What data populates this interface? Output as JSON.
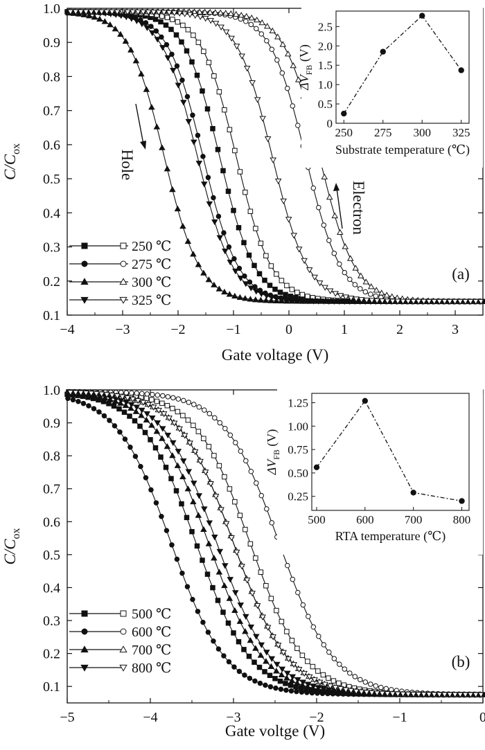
{
  "figure": {
    "panels": [
      "(a)",
      "(b)"
    ]
  },
  "chart_data": [
    {
      "type": "line",
      "panel_label": "(a)",
      "xlabel": "Gate voltage (V)",
      "ylabel_main": "C/C",
      "ylabel_sub": "ox",
      "xlim": [
        -4,
        3.5
      ],
      "ylim": [
        0.1,
        1.0
      ],
      "xticks": [
        -4,
        -3,
        -2,
        -1,
        0,
        1,
        2,
        3
      ],
      "yticks": [
        0.1,
        0.2,
        0.3,
        0.4,
        0.5,
        0.6,
        0.7,
        0.8,
        0.9,
        1.0
      ],
      "annotations": [
        {
          "text": "Hole",
          "direction": "down",
          "position": "left"
        },
        {
          "text": "Electron",
          "direction": "up",
          "position": "right"
        }
      ],
      "legend_position": "bottom-left",
      "series": [
        {
          "name": "250 ℃",
          "marker": "square",
          "sweep_down_v": -1.25,
          "sweep_up_v": -0.95
        },
        {
          "name": "275 ℃",
          "marker": "circle",
          "sweep_down_v": -1.55,
          "sweep_up_v": 0.3
        },
        {
          "name": "300 ℃",
          "marker": "triangle-up",
          "sweep_down_v": -2.25,
          "sweep_up_v": 0.55
        },
        {
          "name": "325 ℃",
          "marker": "triangle-down",
          "sweep_down_v": -1.65,
          "sweep_up_v": -0.3
        }
      ],
      "params": {
        "c_min": 0.14,
        "c_max": 0.99,
        "slope": 0.32
      },
      "inset": {
        "type": "line",
        "xlabel": "Substrate temperature (℃)",
        "ylabel_pre": "ΔV",
        "ylabel_sub": "FB",
        "ylabel_post": " (V)",
        "x": [
          250,
          275,
          300,
          325
        ],
        "y": [
          0.25,
          1.85,
          2.78,
          1.37
        ],
        "xlim": [
          245,
          330
        ],
        "ylim": [
          0,
          2.9
        ],
        "xticks": [
          250,
          275,
          300,
          325
        ],
        "yticks": [
          0,
          0.5,
          1.0,
          1.5,
          2.0,
          2.5
        ],
        "ytick_labels": [
          "0",
          "0.5",
          "1.0",
          "1.5",
          "2.0",
          "2.5"
        ]
      }
    },
    {
      "type": "line",
      "panel_label": "(b)",
      "xlabel": "Gate voltge (V)",
      "ylabel_main": "C/C",
      "ylabel_sub": "ox",
      "xlim": [
        -5,
        0
      ],
      "ylim": [
        0.05,
        1.0
      ],
      "xticks": [
        -5,
        -4,
        -3,
        -2,
        -1,
        0
      ],
      "yticks": [
        0.1,
        0.2,
        0.3,
        0.4,
        0.5,
        0.6,
        0.7,
        0.8,
        0.9,
        1.0
      ],
      "legend_position": "bottom-left",
      "series": [
        {
          "name": "500 ℃",
          "marker": "square",
          "sweep_down_v": -3.45,
          "sweep_up_v": -2.8
        },
        {
          "name": "600 ℃",
          "marker": "circle",
          "sweep_down_v": -3.75,
          "sweep_up_v": -2.45
        },
        {
          "name": "700 ℃",
          "marker": "triangle-up",
          "sweep_down_v": -3.3,
          "sweep_up_v": -3.0
        },
        {
          "name": "800 ℃",
          "marker": "triangle-down",
          "sweep_down_v": -3.2,
          "sweep_up_v": -3.0
        }
      ],
      "params": {
        "c_min": 0.075,
        "c_max": 0.995,
        "slope": 0.33
      },
      "inset": {
        "type": "line",
        "xlabel": "RTA temperature (℃)",
        "ylabel_pre": "ΔV",
        "ylabel_sub": "FB",
        "ylabel_post": " (V)",
        "x": [
          500,
          600,
          700,
          800
        ],
        "y": [
          0.56,
          1.27,
          0.29,
          0.2
        ],
        "xlim": [
          490,
          815
        ],
        "ylim": [
          0.1,
          1.35
        ],
        "xticks": [
          500,
          600,
          700,
          800
        ],
        "yticks": [
          0.25,
          0.5,
          0.75,
          1.0,
          1.25
        ],
        "ytick_labels": [
          "0.25",
          "0.50",
          "0.75",
          "1.00",
          "1.25"
        ]
      }
    }
  ]
}
